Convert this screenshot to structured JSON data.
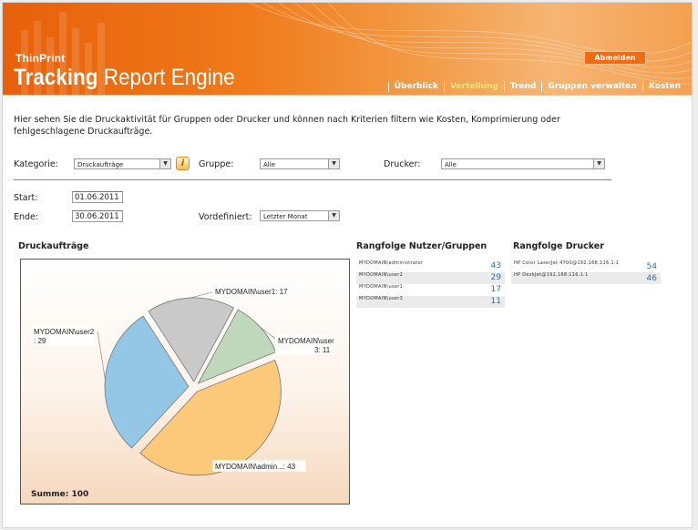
{
  "header": {
    "brand_small": "ThinPrint",
    "brand_bold": "Tracking",
    "brand_rest": " Report Engine",
    "logout_label": "Abmelden",
    "nav": [
      "Überblick",
      "Verteilung",
      "Trend",
      "Gruppen verwalten",
      "Kosten"
    ],
    "active_nav": "Verteilung"
  },
  "intro": "Hier sehen Sie die Druckaktivität für Gruppen oder Drucker und können nach Kriterien filtern wie Kosten, Komprimierung oder fehlgeschlagene Druckaufträge.",
  "filters": {
    "kategorie_label": "Kategorie:",
    "kategorie_value": "Druckaufträge",
    "gruppe_label": "Gruppe:",
    "gruppe_value": "Alle",
    "drucker_label": "Drucker:",
    "drucker_value": "Alle",
    "start_label": "Start:",
    "start_value": "01.06.2011",
    "ende_label": "Ende:",
    "ende_value": "30.06.2011",
    "vordefiniert_label": "Vordefiniert:",
    "vordefiniert_value": "Letzter Monat"
  },
  "colors": {
    "accent": "#e8600a",
    "link_value": "#2a6fb0"
  },
  "chart_title": "Druckaufträge",
  "chart_data": {
    "type": "pie",
    "categories": [
      "MYDOMAIN\\admin...",
      "MYDOMAIN\\user2",
      "MYDOMAIN\\user1",
      "MYDOMAIN\\user3"
    ],
    "values": [
      43,
      29,
      17,
      11
    ],
    "labels": [
      "MYDOMAIN\\admin...: 43",
      "MYDOMAIN\\user2 : 29",
      "MYDOMAIN\\user1: 17",
      "MYDOMAIN\\user 3: 11"
    ],
    "colors": [
      "#fcc879",
      "#94c7e6",
      "#c9c9c9",
      "#bfd8bc"
    ],
    "total_label": "Summe: 100"
  },
  "rank_users": {
    "title": "Rangfolge Nutzer/Gruppen",
    "rows": [
      {
        "name": "MYDOMAIN\\administrator",
        "value": "43"
      },
      {
        "name": "MYDOMAIN\\user2",
        "value": "29"
      },
      {
        "name": "MYDOMAIN\\user1",
        "value": "17"
      },
      {
        "name": "MYDOMAIN\\user3",
        "value": "11"
      }
    ]
  },
  "rank_printers": {
    "title": "Rangfolge Drucker",
    "rows": [
      {
        "name": "HP Color LaserJet 4700@192.168.116.1:1",
        "value": "54"
      },
      {
        "name": "HP DeskJet@192.168.116.1:1",
        "value": "46"
      }
    ]
  }
}
